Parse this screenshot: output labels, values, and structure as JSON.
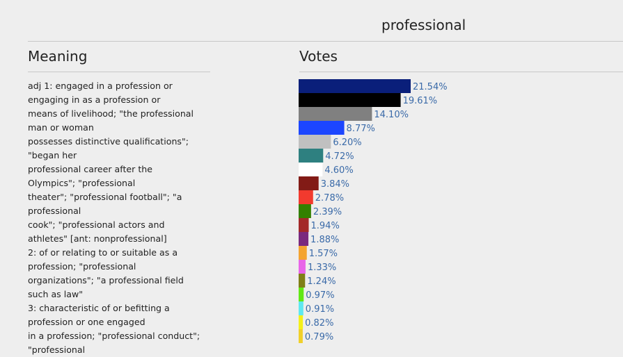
{
  "page": {
    "title": "professional"
  },
  "columns": {
    "meaning": "Meaning",
    "votes": "Votes"
  },
  "meaning_lines": [
    "adj 1: engaged in a profession or",
    "engaging in as a profession or",
    "means of livelihood; \"the professional",
    "man or woman",
    "possesses distinctive qualifications\";",
    "\"began her",
    "professional career after the",
    "Olympics\"; \"professional",
    "theater\"; \"professional football\"; \"a",
    "professional",
    "cook\"; \"professional actors and",
    "athletes\" [ant: nonprofessional]",
    "2: of or relating to or suitable as a",
    "profession; \"professional",
    "organizations\"; \"a professional field",
    "such as law\"",
    "3: characteristic of or befitting a",
    "profession or one engaged",
    "in a profession; \"professional conduct\";",
    "\"professional"
  ],
  "chart_data": {
    "type": "bar",
    "orientation": "horizontal",
    "values": [
      21.54,
      19.61,
      14.1,
      8.77,
      6.2,
      4.72,
      4.6,
      3.84,
      2.78,
      2.39,
      1.94,
      1.88,
      1.57,
      1.33,
      1.24,
      0.97,
      0.91,
      0.82,
      0.79
    ],
    "labels": [
      "21.54%",
      "19.61%",
      "14.10%",
      "8.77%",
      "6.20%",
      "4.72%",
      "4.60%",
      "3.84%",
      "2.78%",
      "2.39%",
      "1.94%",
      "1.88%",
      "1.57%",
      "1.33%",
      "1.24%",
      "0.97%",
      "0.91%",
      "0.82%",
      "0.79%"
    ],
    "colors": [
      "#0a1f7a",
      "#000000",
      "#808080",
      "#1c46ff",
      "#c0c0c0",
      "#2e8080",
      "#ffffff",
      "#821b16",
      "#f23a2e",
      "#338000",
      "#a32929",
      "#7a2a7e",
      "#f4a430",
      "#e865e8",
      "#7f7f16",
      "#62e816",
      "#5fe8f0",
      "#f4f01a",
      "#f0d02a"
    ],
    "label_color": "#3a6aa8",
    "title": "professional",
    "xlabel": "",
    "ylabel": ""
  }
}
